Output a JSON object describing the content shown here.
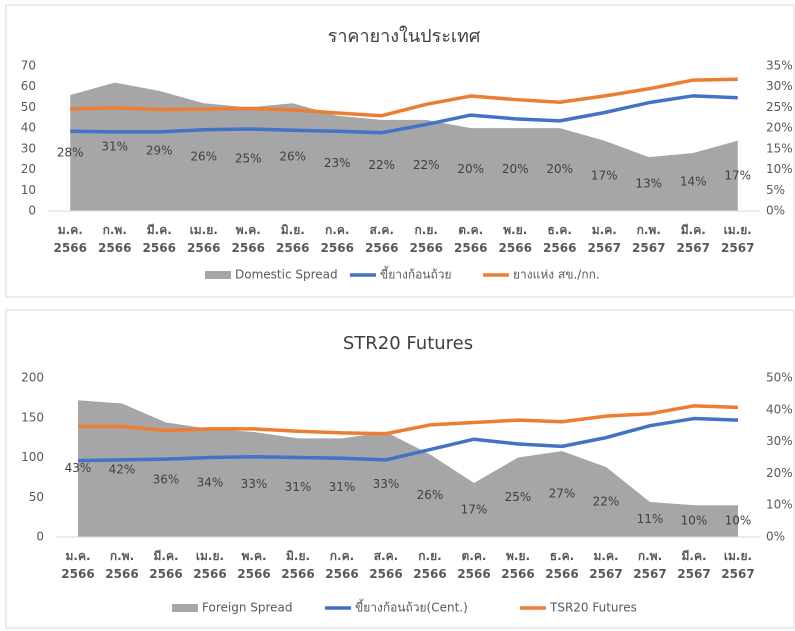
{
  "chart_data": [
    {
      "type": "combo",
      "title": "ราคายางในประเทศ",
      "categories": [
        [
          "ม.ค.",
          "2566"
        ],
        [
          "ก.พ.",
          "2566"
        ],
        [
          "มี.ค.",
          "2566"
        ],
        [
          "เม.ย.",
          "2566"
        ],
        [
          "พ.ค.",
          "2566"
        ],
        [
          "มิ.ย.",
          "2566"
        ],
        [
          "ก.ค.",
          "2566"
        ],
        [
          "ส.ค.",
          "2566"
        ],
        [
          "ก.ย.",
          "2566"
        ],
        [
          "ต.ค.",
          "2566"
        ],
        [
          "พ.ย.",
          "2566"
        ],
        [
          "ธ.ค.",
          "2566"
        ],
        [
          "ม.ค.",
          "2567"
        ],
        [
          "ก.พ.",
          "2567"
        ],
        [
          "มี.ค.",
          "2567"
        ],
        [
          "เม.ย.",
          "2567"
        ]
      ],
      "ylim": [
        0,
        70
      ],
      "yticks": [
        0,
        10,
        20,
        30,
        40,
        50,
        60,
        70
      ],
      "y2lim": [
        0,
        35
      ],
      "y2ticks": [
        {
          "value": 0,
          "label": "0%"
        },
        {
          "value": 5,
          "label": "5%"
        },
        {
          "value": 10,
          "label": "10%"
        },
        {
          "value": 15,
          "label": "15%"
        },
        {
          "value": 20,
          "label": "20%"
        },
        {
          "value": 25,
          "label": "25%"
        },
        {
          "value": 30,
          "label": "30%"
        },
        {
          "value": 35,
          "label": "35%"
        }
      ],
      "series": [
        {
          "name": "Domestic Spread",
          "type": "area",
          "axis": "y2",
          "color": "#a6a6a6",
          "values": [
            28,
            31,
            29,
            26,
            25,
            26,
            23,
            22,
            22,
            20,
            20,
            20,
            17,
            13,
            14,
            17
          ],
          "value_labels": [
            "28%",
            "31%",
            "29%",
            "26%",
            "25%",
            "26%",
            "23%",
            "22%",
            "22%",
            "20%",
            "20%",
            "20%",
            "17%",
            "13%",
            "14%",
            "17%"
          ]
        },
        {
          "name": "ขี้ยางก้อนถ้วย",
          "type": "line",
          "color": "#4472c4",
          "values": [
            38.5,
            38.2,
            38.2,
            39.2,
            39.6,
            39,
            38.5,
            37.8,
            41.8,
            46.3,
            44.5,
            43.5,
            47.5,
            52.3,
            55.6,
            54.7
          ]
        },
        {
          "name": "ยางแห่ง สข./กก.",
          "type": "line",
          "color": "#ed7d31",
          "values": [
            49.3,
            49.8,
            49,
            49.2,
            49.5,
            48.8,
            47.3,
            46,
            51.5,
            55.5,
            53.8,
            52.5,
            55.5,
            59,
            63.2,
            63.6
          ]
        }
      ]
    },
    {
      "type": "combo",
      "title": "STR20 Futures",
      "categories": [
        [
          "ม.ค.",
          "2566"
        ],
        [
          "ก.พ.",
          "2566"
        ],
        [
          "มี.ค.",
          "2566"
        ],
        [
          "เม.ย.",
          "2566"
        ],
        [
          "พ.ค.",
          "2566"
        ],
        [
          "มิ.ย.",
          "2566"
        ],
        [
          "ก.ค.",
          "2566"
        ],
        [
          "ส.ค.",
          "2566"
        ],
        [
          "ก.ย.",
          "2566"
        ],
        [
          "ต.ค.",
          "2566"
        ],
        [
          "พ.ย.",
          "2566"
        ],
        [
          "ธ.ค.",
          "2566"
        ],
        [
          "ม.ค.",
          "2567"
        ],
        [
          "ก.พ.",
          "2567"
        ],
        [
          "มี.ค.",
          "2567"
        ],
        [
          "เม.ย.",
          "2567"
        ]
      ],
      "ylim": [
        0,
        200
      ],
      "yticks": [
        0,
        50,
        100,
        150,
        200
      ],
      "y2lim": [
        0,
        50
      ],
      "y2ticks": [
        {
          "value": 0,
          "label": "0%"
        },
        {
          "value": 10,
          "label": "10%"
        },
        {
          "value": 20,
          "label": "20%"
        },
        {
          "value": 30,
          "label": "30%"
        },
        {
          "value": 40,
          "label": "40%"
        },
        {
          "value": 50,
          "label": "50%"
        }
      ],
      "series": [
        {
          "name": "Foreign Spread",
          "type": "area",
          "axis": "y2",
          "color": "#a6a6a6",
          "values": [
            43,
            42,
            36,
            34,
            33,
            31,
            31,
            33,
            26,
            17,
            25,
            27,
            22,
            11,
            10,
            10
          ],
          "value_labels": [
            "43%",
            "42%",
            "36%",
            "34%",
            "33%",
            "31%",
            "31%",
            "33%",
            "26%",
            "17%",
            "25%",
            "27%",
            "22%",
            "11%",
            "10%",
            "10%"
          ]
        },
        {
          "name": "ขี้ยางก้อนถ้วย(Cent.)",
          "type": "line",
          "color": "#4472c4",
          "values": [
            96,
            97,
            98,
            100,
            101,
            100,
            99,
            97,
            110,
            123,
            117,
            114,
            125,
            140,
            149,
            147
          ]
        },
        {
          "name": "TSR20 Futures",
          "type": "line",
          "color": "#ed7d31",
          "values": [
            139,
            139,
            134,
            136,
            136,
            133,
            131,
            130,
            141,
            144,
            147,
            145,
            152,
            155,
            165,
            163
          ]
        }
      ]
    }
  ]
}
